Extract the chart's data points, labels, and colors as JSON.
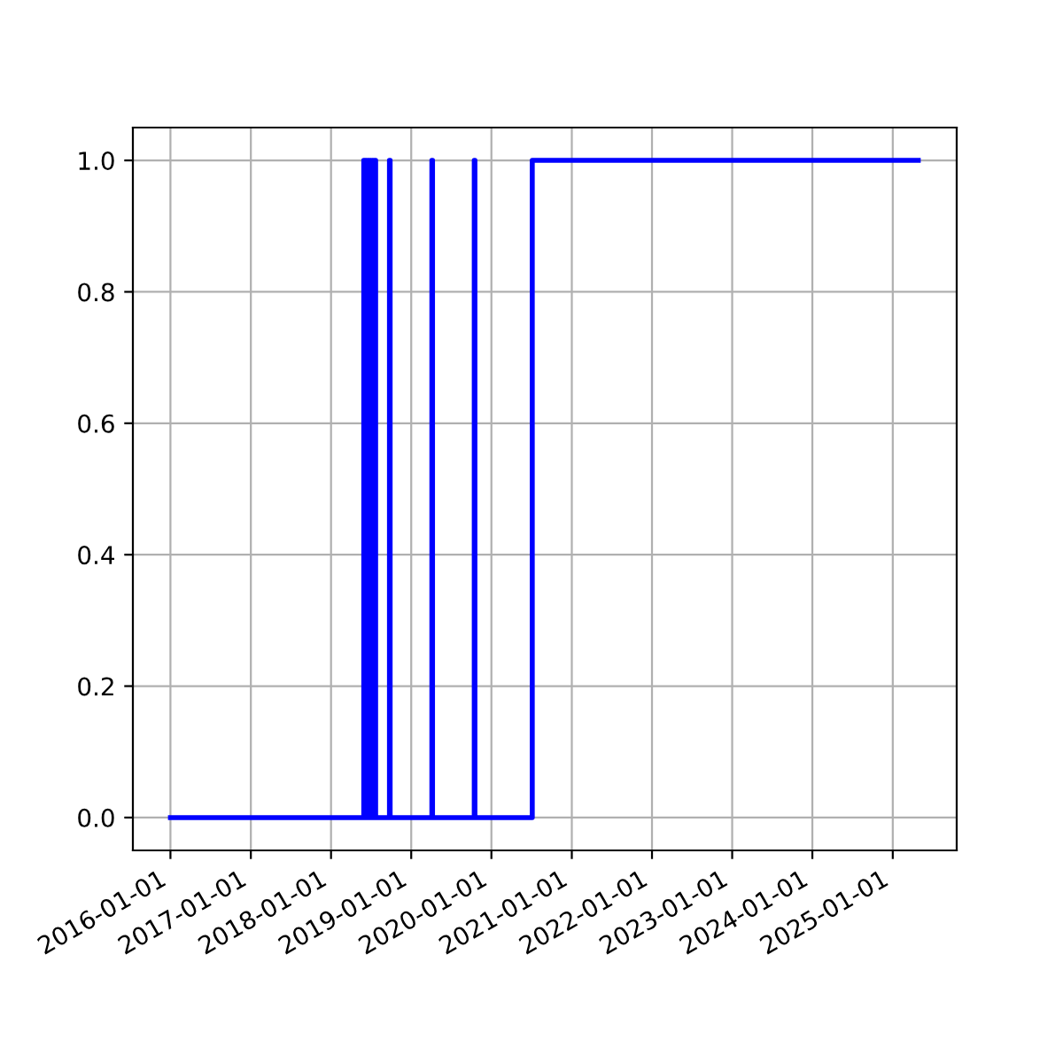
{
  "chart_data": {
    "type": "step",
    "x": [
      "2016-01-01",
      "2018-05-30",
      "2018-06-03",
      "2018-06-08",
      "2018-06-12",
      "2018-06-18",
      "2018-06-22",
      "2018-06-28",
      "2018-07-02",
      "2018-07-08",
      "2018-07-12",
      "2018-07-18",
      "2018-07-23",
      "2018-09-24",
      "2018-09-27",
      "2019-04-05",
      "2019-04-08",
      "2019-10-15",
      "2019-10-18",
      "2020-07-05",
      "2025-04-27"
    ],
    "series": [
      {
        "color": "#0000ff",
        "values": [
          0,
          1,
          0,
          1,
          0,
          1,
          0,
          1,
          0,
          1,
          0,
          1,
          0,
          1,
          0,
          1,
          0,
          1,
          0,
          1,
          1
        ]
      }
    ],
    "xlim": [
      "2015-07-14",
      "2025-10-19"
    ],
    "xticks": [
      "2016-01-01",
      "2017-01-01",
      "2018-01-01",
      "2019-01-01",
      "2020-01-01",
      "2021-01-01",
      "2022-01-01",
      "2023-01-01",
      "2024-01-01",
      "2025-01-01"
    ],
    "ylim": [
      -0.05,
      1.05
    ],
    "yticks": [
      {
        "value": 0,
        "label": "0.0"
      },
      {
        "value": 0.2,
        "label": "0.2"
      },
      {
        "value": 0.4,
        "label": "0.4"
      },
      {
        "value": 0.6,
        "label": "0.6"
      },
      {
        "value": 0.8,
        "label": "0.8"
      },
      {
        "value": 1,
        "label": "1.0"
      }
    ],
    "grid": true,
    "line_style": "solid",
    "marker": "none"
  }
}
